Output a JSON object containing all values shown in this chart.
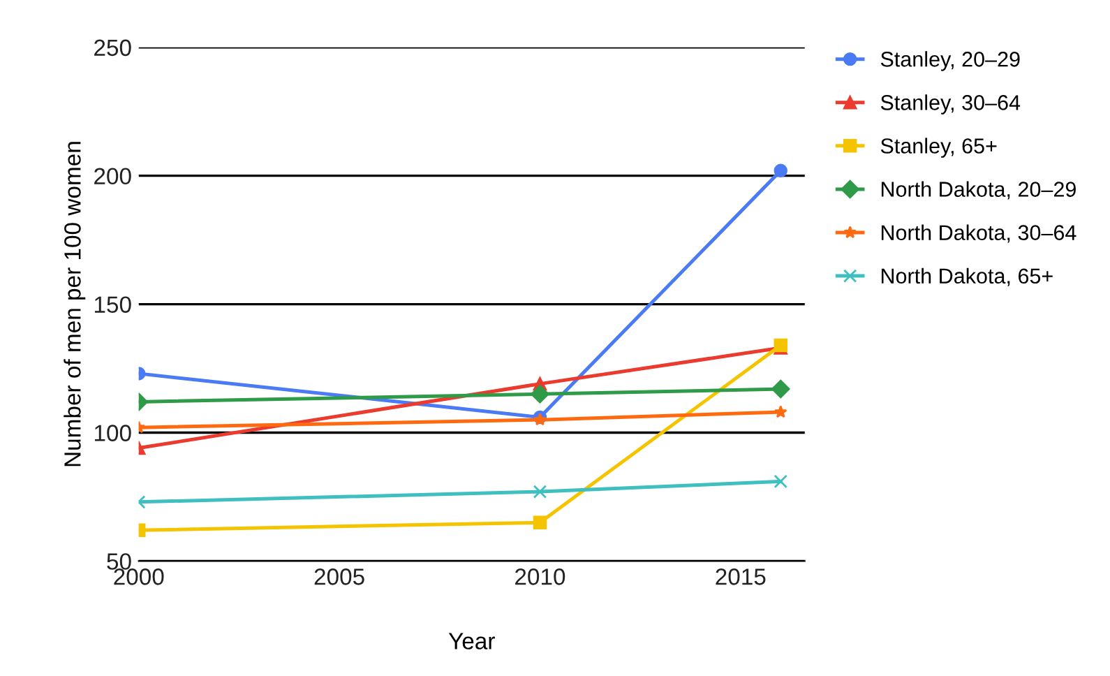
{
  "chart_data": {
    "type": "line",
    "xlabel": "Year",
    "ylabel": "Number of men per 100 women",
    "x": [
      2000,
      2010,
      2016
    ],
    "xlim": [
      2000,
      2016.6
    ],
    "xticks": [
      2000,
      2005,
      2010,
      2015
    ],
    "ylim": [
      50,
      250
    ],
    "yticks": [
      50,
      100,
      150,
      200,
      250
    ],
    "grid": "y",
    "legend": "right",
    "line_style": "solid",
    "series": [
      {
        "name": "Stanley, 20–29",
        "color": "#4a7bf5",
        "marker": "circle",
        "values": [
          123,
          106,
          202
        ]
      },
      {
        "name": "Stanley, 30–64",
        "color": "#ea3b2e",
        "marker": "triangle",
        "values": [
          94,
          119,
          133
        ]
      },
      {
        "name": "Stanley, 65+",
        "color": "#f5c400",
        "marker": "square",
        "values": [
          62,
          65,
          134
        ]
      },
      {
        "name": "North Dakota, 20–29",
        "color": "#2f9a48",
        "marker": "diamond",
        "values": [
          112,
          115,
          117
        ]
      },
      {
        "name": "North Dakota, 30–64",
        "color": "#ff6a10",
        "marker": "star",
        "values": [
          102,
          105,
          108
        ]
      },
      {
        "name": "North Dakota, 65+",
        "color": "#3fbfc0",
        "marker": "cross",
        "values": [
          73,
          77,
          81
        ]
      }
    ]
  }
}
